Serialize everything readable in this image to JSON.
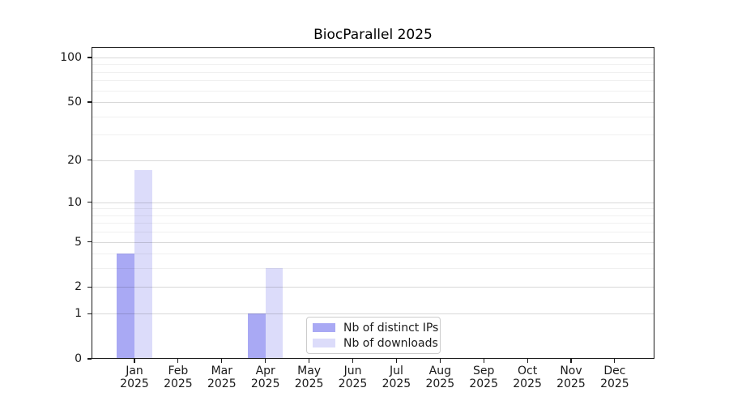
{
  "chart_data": {
    "type": "bar",
    "title": "BiocParallel 2025",
    "months": [
      "Jan",
      "Feb",
      "Mar",
      "Apr",
      "May",
      "Jun",
      "Jul",
      "Aug",
      "Sep",
      "Oct",
      "Nov",
      "Dec"
    ],
    "year": "2025",
    "series": [
      {
        "name": "Nb of distinct IPs",
        "color": "#a9a9f4",
        "values": [
          4,
          0,
          0,
          1,
          0,
          0,
          0,
          0,
          0,
          0,
          0,
          0
        ]
      },
      {
        "name": "Nb of downloads",
        "color": "#dcdcfa",
        "values": [
          17,
          0,
          0,
          3,
          0,
          0,
          0,
          0,
          0,
          0,
          0,
          0
        ]
      }
    ],
    "y_axis": {
      "scale": "log1p",
      "ticks": [
        0,
        1,
        2,
        5,
        10,
        20,
        50,
        100
      ],
      "minor_gridlines": [
        3,
        4,
        6,
        7,
        8,
        9,
        30,
        40,
        60,
        70,
        80,
        90
      ],
      "ylim": [
        0,
        118
      ]
    },
    "x_axis": {
      "label_lines": 2
    },
    "grid": true,
    "legend_position": "lower center"
  }
}
